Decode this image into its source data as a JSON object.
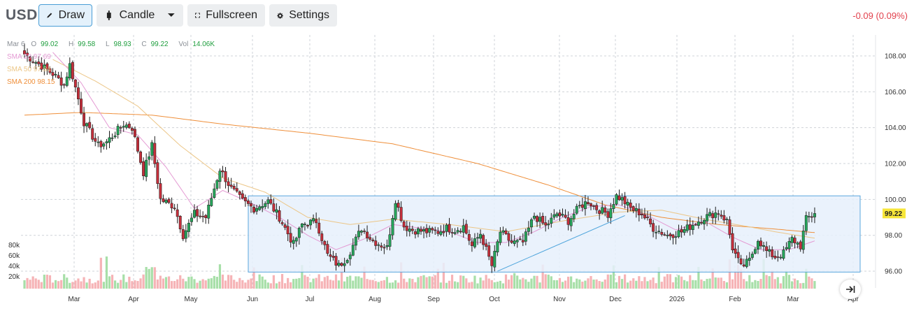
{
  "toolbar": {
    "symbol": "USD",
    "draw_label": "Draw",
    "candle_label": "Candle",
    "fullscreen_label": "Fullscreen",
    "settings_label": "Settings",
    "change_text": "-0.09 (0.09%)"
  },
  "legend": {
    "date": "Mar 6",
    "open_label": "O",
    "open": "99.02",
    "high_label": "H",
    "high": "99.58",
    "low_label": "L",
    "low": "98.93",
    "close_label": "C",
    "close": "99.22",
    "vol_label": "Vol",
    "vol": "14.06K",
    "sma20": "SMA 20   97.69",
    "sma50": "SMA 50   97.84",
    "sma200": "SMA 200   98.15"
  },
  "colors": {
    "up": "#26a65b",
    "down": "#c62f3b",
    "vol_up": "#a7dfa8",
    "vol_down": "#f6b3b6",
    "sma20": "#e49ad3",
    "sma50": "#ecc687",
    "sma200": "#ef8f3a",
    "box_fill": "#e6f0fb",
    "box_stroke": "#5aa7de",
    "trendline": "#4fa5dc",
    "last_price_bg": "#f7e63a"
  },
  "chart_data": {
    "type": "candlestick",
    "y_ticks": [
      "108.00",
      "106.00",
      "104.00",
      "102.00",
      "100.00",
      "98.00",
      "96.00"
    ],
    "y_range": [
      95.7,
      108.6
    ],
    "volume_ticks": [
      "80k",
      "60k",
      "40k",
      "20k"
    ],
    "x_ticks": [
      "Mar",
      "Apr",
      "May",
      "Jun",
      "Jul",
      "Aug",
      "Sep",
      "Oct",
      "Nov",
      "Dec",
      "2026",
      "Feb",
      "Mar",
      "Apr"
    ],
    "last_price": "99.22",
    "close_anchors": [
      [
        0,
        108.1
      ],
      [
        10,
        107.0
      ],
      [
        14,
        106.4
      ],
      [
        16,
        107.5
      ],
      [
        19,
        105.6
      ],
      [
        21,
        104.3
      ],
      [
        26,
        103.0
      ],
      [
        29,
        103.2
      ],
      [
        35,
        104.2
      ],
      [
        38,
        104.0
      ],
      [
        42,
        101.5
      ],
      [
        45,
        103.0
      ],
      [
        48,
        100.0
      ],
      [
        53,
        99.6
      ],
      [
        56,
        98.0
      ],
      [
        60,
        99.2
      ],
      [
        64,
        99.0
      ],
      [
        69,
        101.7
      ],
      [
        73,
        100.6
      ],
      [
        77,
        99.9
      ],
      [
        81,
        99.5
      ],
      [
        86,
        99.9
      ],
      [
        90,
        99.0
      ],
      [
        95,
        97.5
      ],
      [
        98,
        98.6
      ],
      [
        103,
        98.8
      ],
      [
        107,
        96.9
      ],
      [
        111,
        96.3
      ],
      [
        114,
        96.8
      ],
      [
        119,
        98.4
      ],
      [
        123,
        97.7
      ],
      [
        128,
        97.3
      ],
      [
        131,
        100.0
      ],
      [
        134,
        98.5
      ],
      [
        137,
        98.3
      ],
      [
        142,
        98.2
      ],
      [
        146,
        98.2
      ],
      [
        149,
        98.4
      ],
      [
        152,
        98.3
      ],
      [
        155,
        98.5
      ],
      [
        158,
        97.4
      ],
      [
        161,
        98.1
      ],
      [
        165,
        96.3
      ],
      [
        168,
        98.2
      ],
      [
        172,
        97.6
      ],
      [
        176,
        97.6
      ],
      [
        180,
        99.1
      ],
      [
        184,
        98.5
      ],
      [
        188,
        99.2
      ],
      [
        192,
        98.8
      ],
      [
        196,
        99.6
      ],
      [
        199,
        99.9
      ],
      [
        202,
        99.5
      ],
      [
        206,
        99.2
      ],
      [
        209,
        100.2
      ],
      [
        211,
        100.0
      ],
      [
        214,
        99.5
      ],
      [
        218,
        99.2
      ],
      [
        222,
        98.4
      ],
      [
        227,
        98.0
      ],
      [
        232,
        98.2
      ],
      [
        236,
        98.6
      ],
      [
        240,
        99.0
      ],
      [
        245,
        99.3
      ],
      [
        248,
        98.8
      ],
      [
        250,
        97.3
      ],
      [
        253,
        96.2
      ],
      [
        256,
        96.6
      ],
      [
        259,
        97.8
      ],
      [
        262,
        97.1
      ],
      [
        265,
        96.8
      ],
      [
        268,
        97.0
      ],
      [
        271,
        97.8
      ],
      [
        274,
        97.4
      ],
      [
        276,
        98.9
      ],
      [
        279,
        99.22
      ]
    ],
    "sma200": [
      [
        0,
        104.7
      ],
      [
        20,
        104.85
      ],
      [
        45,
        104.7
      ],
      [
        70,
        104.2
      ],
      [
        100,
        103.7
      ],
      [
        130,
        103.1
      ],
      [
        160,
        102.0
      ],
      [
        185,
        100.8
      ],
      [
        205,
        99.7
      ],
      [
        225,
        99.0
      ],
      [
        245,
        98.6
      ],
      [
        265,
        98.35
      ],
      [
        279,
        98.15
      ]
    ],
    "sma50": [
      [
        10,
        107.8
      ],
      [
        25,
        106.6
      ],
      [
        40,
        105.2
      ],
      [
        55,
        103.0
      ],
      [
        70,
        101.2
      ],
      [
        85,
        100.4
      ],
      [
        100,
        99.0
      ],
      [
        115,
        98.6
      ],
      [
        130,
        98.9
      ],
      [
        150,
        98.6
      ],
      [
        170,
        98.2
      ],
      [
        190,
        98.8
      ],
      [
        210,
        99.3
      ],
      [
        225,
        99.4
      ],
      [
        240,
        98.9
      ],
      [
        255,
        98.5
      ],
      [
        265,
        98.2
      ],
      [
        279,
        97.84
      ]
    ],
    "sma20": [
      [
        10,
        108.2
      ],
      [
        20,
        106.5
      ],
      [
        30,
        104.0
      ],
      [
        40,
        103.6
      ],
      [
        50,
        101.8
      ],
      [
        60,
        99.5
      ],
      [
        70,
        100.5
      ],
      [
        80,
        99.8
      ],
      [
        90,
        99.0
      ],
      [
        100,
        98.0
      ],
      [
        110,
        97.2
      ],
      [
        120,
        97.8
      ],
      [
        130,
        98.6
      ],
      [
        140,
        98.4
      ],
      [
        150,
        98.2
      ],
      [
        160,
        97.6
      ],
      [
        170,
        97.6
      ],
      [
        180,
        98.2
      ],
      [
        190,
        99.0
      ],
      [
        200,
        99.6
      ],
      [
        210,
        99.7
      ],
      [
        220,
        99.1
      ],
      [
        230,
        98.3
      ],
      [
        240,
        98.8
      ],
      [
        250,
        97.9
      ],
      [
        260,
        97.2
      ],
      [
        270,
        97.2
      ],
      [
        279,
        97.69
      ]
    ],
    "box": {
      "y_top": 100.2,
      "y_bottom": 95.95
    },
    "trendline": {
      "from": [
        167,
        96.0
      ],
      "to": [
        212,
        99.1
      ]
    }
  }
}
